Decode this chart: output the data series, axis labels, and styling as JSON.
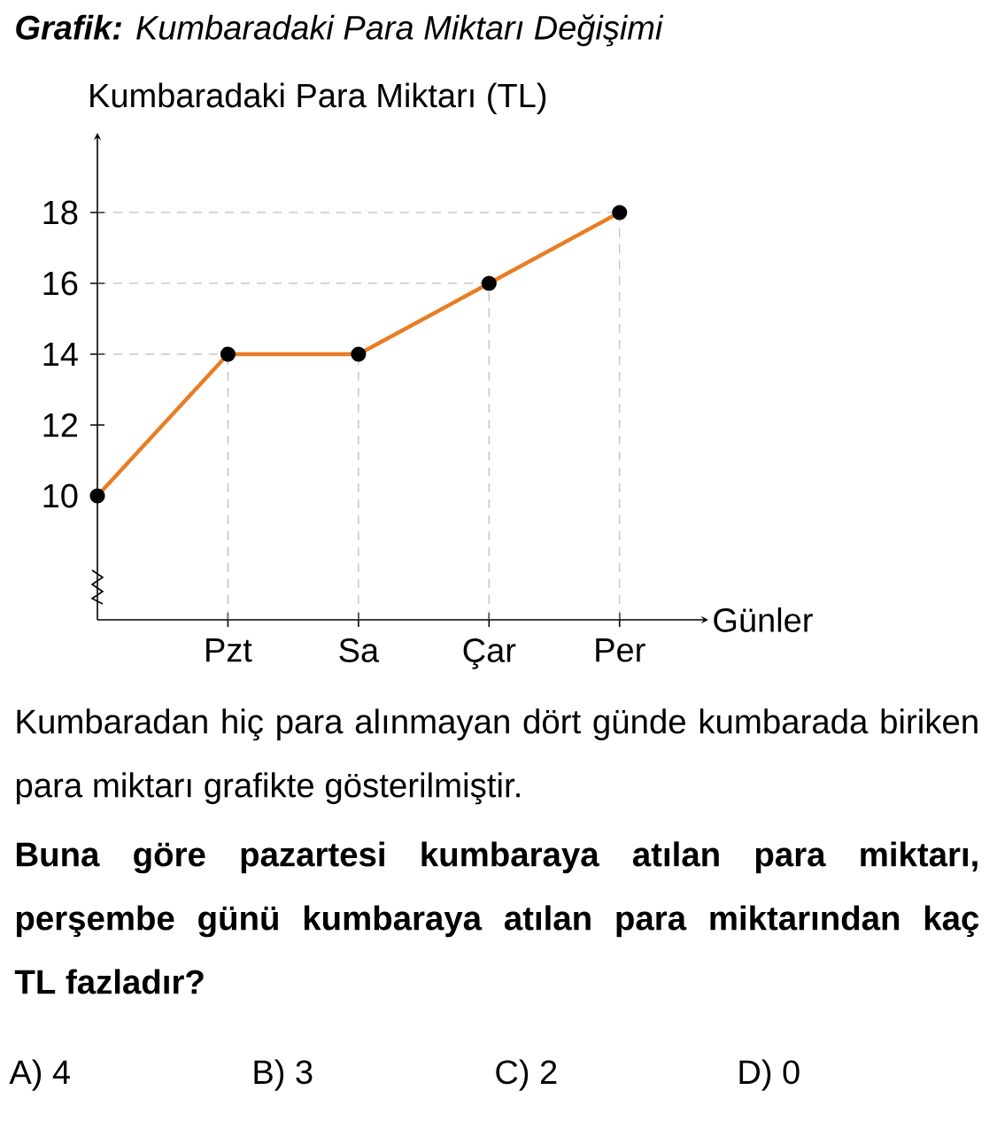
{
  "chart_data": {
    "type": "line",
    "title": "**Grafik:** Kumbaradaki Para Miktarı Değişimi",
    "xlabel": "Günler",
    "ylabel": "Kumbaradaki Para Miktarı (TL)",
    "categories": [
      null,
      "Pzt",
      "Sa",
      "Çar",
      "Per"
    ],
    "series": [
      {
        "color": "#e87d23",
        "values": [
          10,
          14,
          14,
          16,
          18
        ]
      }
    ],
    "ylim": [
      6.5,
      20.25
    ],
    "yticks": [
      10,
      12,
      14,
      16,
      18
    ],
    "marker": "circle",
    "line_style": "solid",
    "ref_lines": [
      {
        "axis": "y",
        "value": 14,
        "color": "#999999",
        "line_style": "dashed"
      },
      {
        "axis": "y",
        "value": 16,
        "color": "#999999",
        "line_style": "dashed"
      },
      {
        "axis": "y",
        "value": 18,
        "color": "#999999",
        "line_style": "dashed"
      },
      {
        "axis": "x",
        "value": "Pzt",
        "color": "#999999",
        "line_style": "dashed"
      },
      {
        "axis": "x",
        "value": "Sa",
        "color": "#999999",
        "line_style": "dashed"
      },
      {
        "axis": "x",
        "value": "Çar",
        "color": "#999999",
        "line_style": "dashed"
      },
      {
        "axis": "x",
        "value": "Per",
        "color": "#999999",
        "line_style": "dashed"
      }
    ],
    "annotations": [
      "Kumbaradan hiç para alınmayan dört günde kumbarada biriken para miktarı grafikte gösterilmiştir.",
      "**Buna göre pazartesi kumbaraya atılan para miktarı, perşembe günü kumbaraya atılan para miktarından kaç TL fazladır?**",
      "A) 4",
      "B) 3",
      "C) 2",
      "D) 0"
    ]
  }
}
